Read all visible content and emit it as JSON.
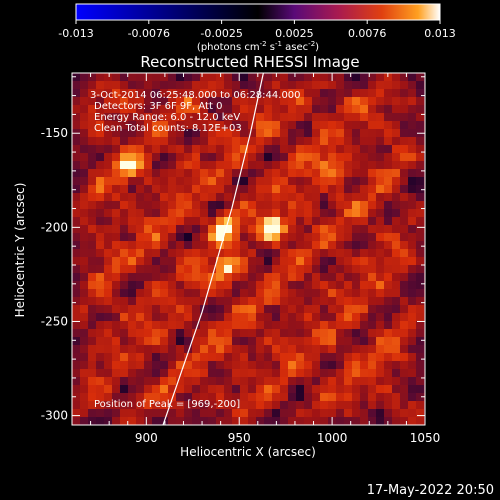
{
  "colorbar": {
    "ticks": [
      "-0.013",
      "-0.0076",
      "-0.0025",
      "0.0025",
      "0.0076",
      "0.013"
    ],
    "units_label": "(photons cm",
    "units_exp1": "-2",
    "units_mid": " s",
    "units_exp2": "-1",
    "units_end": " asec",
    "units_exp3": "-2",
    "units_close": ")",
    "colors": [
      "#0000ff",
      "#000000",
      "#5a0a78",
      "#a81a50",
      "#e04010",
      "#ffa020",
      "#ffffff"
    ]
  },
  "chart_data": {
    "type": "heatmap",
    "title": "Reconstructed RHESSI Image",
    "xlabel": "Heliocentric X (arcsec)",
    "ylabel": "Heliocentric Y (arcsec)",
    "xlim": [
      860,
      1050
    ],
    "ylim": [
      -305,
      -118
    ],
    "xticks": [
      900,
      950,
      1000,
      1050
    ],
    "yticks": [
      -150,
      -200,
      -250,
      -300
    ],
    "info_lines": [
      "3-Oct-2014 06:25:48.000 to 06:28:44.000",
      "Detectors: 3F 6F 9F, Att 0",
      "Energy Range: 6.0 - 12.0 keV",
      "Clean     Total counts: 8.12E+03"
    ],
    "peak_text": "Position of Peak = [969,-200]",
    "peaks": [
      {
        "x": 969,
        "y": -200,
        "level": 1.0
      },
      {
        "x": 941,
        "y": -200,
        "level": 0.8
      },
      {
        "x": 943,
        "y": -222,
        "level": 0.8
      },
      {
        "x": 890,
        "y": -168,
        "level": 0.7
      },
      {
        "x": 1000,
        "y": -168,
        "level": 0.6
      }
    ],
    "limb_curve": [
      {
        "x": 909,
        "y": -305
      },
      {
        "x": 930,
        "y": -245
      },
      {
        "x": 946,
        "y": -190
      },
      {
        "x": 956,
        "y": -150
      },
      {
        "x": 963,
        "y": -118
      }
    ]
  },
  "timestamp": "17-May-2022 20:50"
}
